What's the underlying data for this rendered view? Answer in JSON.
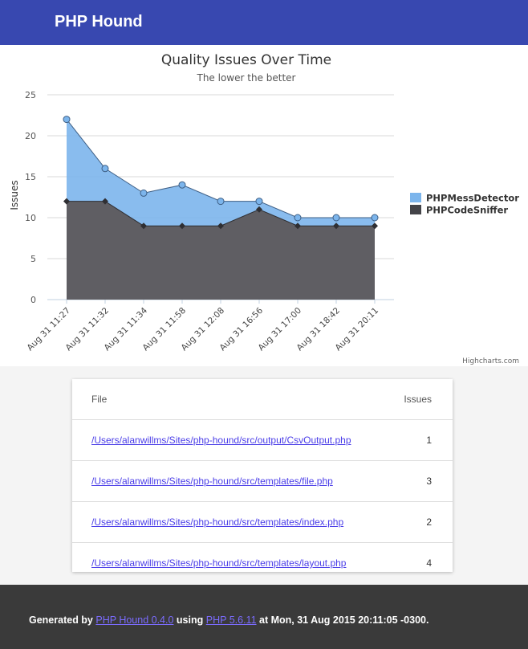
{
  "app": {
    "brand": "PHP Hound"
  },
  "chart_data": {
    "type": "area",
    "title": "Quality Issues Over Time",
    "subtitle": "The lower the better",
    "ylabel": "Issues",
    "xlabel": "",
    "ylim": [
      0,
      25
    ],
    "yticks": [
      0,
      5,
      10,
      15,
      20,
      25
    ],
    "grid": true,
    "stacked": true,
    "legend_position": "right",
    "credits": "Highcharts.com",
    "categories": [
      "Aug 31 11:27",
      "Aug 31 11:32",
      "Aug 31 11:34",
      "Aug 31 11:58",
      "Aug 31 12:08",
      "Aug 31 16:56",
      "Aug 31 17:00",
      "Aug 31 18:42",
      "Aug 31 20:11"
    ],
    "series": [
      {
        "name": "PHPMessDetector",
        "color": "#7cb5ec",
        "values": [
          10,
          4,
          4,
          5,
          3,
          1,
          1,
          1,
          1
        ],
        "totals": [
          22,
          16,
          13,
          14,
          12,
          12,
          10,
          10,
          10
        ]
      },
      {
        "name": "PHPCodeSniffer",
        "color": "#434348",
        "values": [
          12,
          12,
          9,
          9,
          9,
          11,
          9,
          9,
          9
        ]
      }
    ]
  },
  "table": {
    "headers": {
      "file": "File",
      "issues": "Issues"
    },
    "rows": [
      {
        "file": "/Users/alanwillms/Sites/php-hound/src/output/CsvOutput.php",
        "issues": "1"
      },
      {
        "file": "/Users/alanwillms/Sites/php-hound/src/templates/file.php",
        "issues": "3"
      },
      {
        "file": "/Users/alanwillms/Sites/php-hound/src/templates/index.php",
        "issues": "2"
      },
      {
        "file": "/Users/alanwillms/Sites/php-hound/src/templates/layout.php",
        "issues": "4"
      }
    ]
  },
  "footer": {
    "prefix": "Generated by",
    "hound_link": "PHP Hound 0.4.0",
    "using": "using",
    "php_link": "PHP 5.6.11",
    "suffix": "at Mon, 31 Aug 2015 20:11:05 -0300."
  }
}
